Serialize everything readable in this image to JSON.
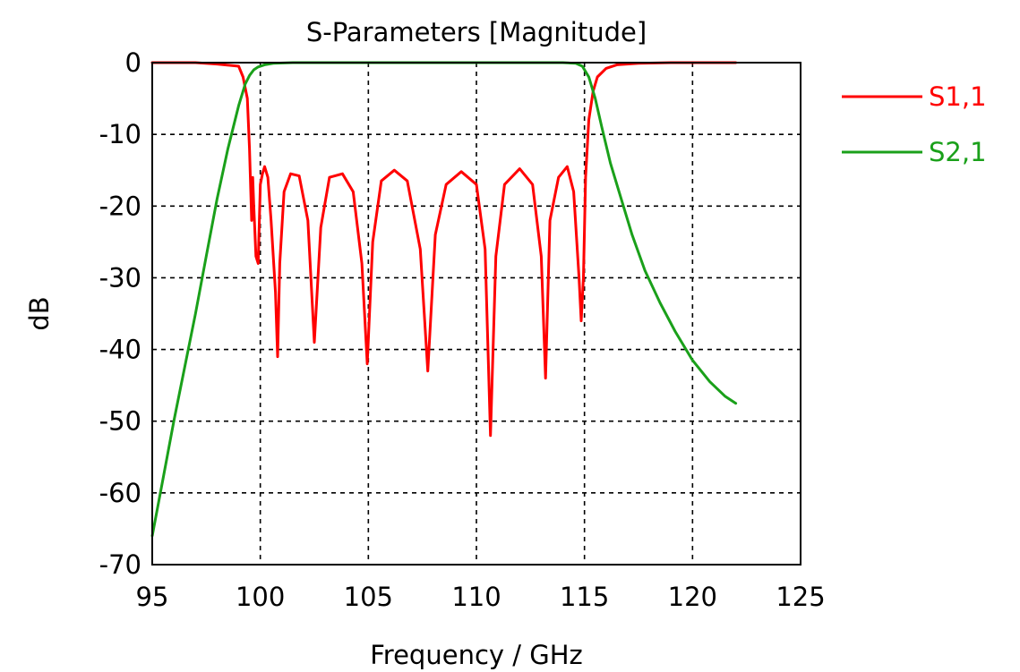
{
  "chart_data": {
    "type": "line",
    "title": "S-Parameters [Magnitude]",
    "xlabel": "Frequency / GHz",
    "ylabel": "dB",
    "xlim": [
      95,
      125
    ],
    "ylim": [
      -70,
      0
    ],
    "xticks": [
      95,
      100,
      105,
      110,
      115,
      120,
      125
    ],
    "yticks": [
      0,
      -10,
      -20,
      -30,
      -40,
      -50,
      -60,
      -70
    ],
    "grid": true,
    "legend_position": "right",
    "series": [
      {
        "name": "S1,1",
        "color": "#ff0000",
        "x": [
          95,
          97,
          98,
          99,
          99.2,
          99.4,
          99.5,
          99.6,
          99.65,
          99.7,
          99.8,
          99.9,
          100,
          100.1,
          100.2,
          100.35,
          100.5,
          100.7,
          100.8,
          100.9,
          101.1,
          101.4,
          101.8,
          102.2,
          102.5,
          102.8,
          103.2,
          103.8,
          104.3,
          104.7,
          104.95,
          105.2,
          105.6,
          106.2,
          106.8,
          107.4,
          107.75,
          108.1,
          108.6,
          109.3,
          110,
          110.4,
          110.65,
          110.9,
          111.3,
          112,
          112.6,
          113,
          113.2,
          113.4,
          113.8,
          114.2,
          114.5,
          114.75,
          114.85,
          114.95,
          115.05,
          115.2,
          115.4,
          115.6,
          116,
          116.5,
          117.5,
          119,
          122
        ],
        "y": [
          0,
          0,
          -0.2,
          -0.5,
          -2,
          -5,
          -12,
          -22,
          -16,
          -20,
          -27,
          -28,
          -17,
          -15.5,
          -14.5,
          -16,
          -22,
          -32,
          -41,
          -28,
          -18,
          -15.5,
          -15.8,
          -22,
          -39,
          -23,
          -16,
          -15.5,
          -18,
          -28,
          -42,
          -25,
          -16.5,
          -15,
          -16.5,
          -26,
          -43,
          -24,
          -17,
          -15.2,
          -17,
          -26,
          -52,
          -27,
          -17,
          -14.8,
          -17,
          -27,
          -44,
          -22,
          -16,
          -14.5,
          -18,
          -30,
          -36,
          -30,
          -16,
          -8,
          -4,
          -2,
          -0.8,
          -0.3,
          -0.1,
          0,
          0
        ]
      },
      {
        "name": "S2,1",
        "color": "#1aa01a",
        "x": [
          95,
          95.5,
          96,
          96.5,
          97,
          97.5,
          98,
          98.5,
          99,
          99.3,
          99.5,
          99.7,
          99.9,
          100.2,
          100.6,
          101.5,
          103,
          108,
          114,
          114.6,
          114.9,
          115.2,
          115.5,
          115.8,
          116.2,
          116.7,
          117.2,
          117.8,
          118.5,
          119.2,
          120,
          120.8,
          121.5,
          122
        ],
        "y": [
          -66,
          -58,
          -50,
          -42.5,
          -35,
          -27,
          -19,
          -12,
          -6,
          -3,
          -1.8,
          -1,
          -0.6,
          -0.3,
          -0.1,
          0,
          0,
          0,
          0,
          -0.1,
          -0.5,
          -2,
          -5,
          -9,
          -14,
          -19,
          -24,
          -29,
          -33.5,
          -37.5,
          -41.5,
          -44.5,
          -46.5,
          -47.5
        ]
      }
    ]
  }
}
